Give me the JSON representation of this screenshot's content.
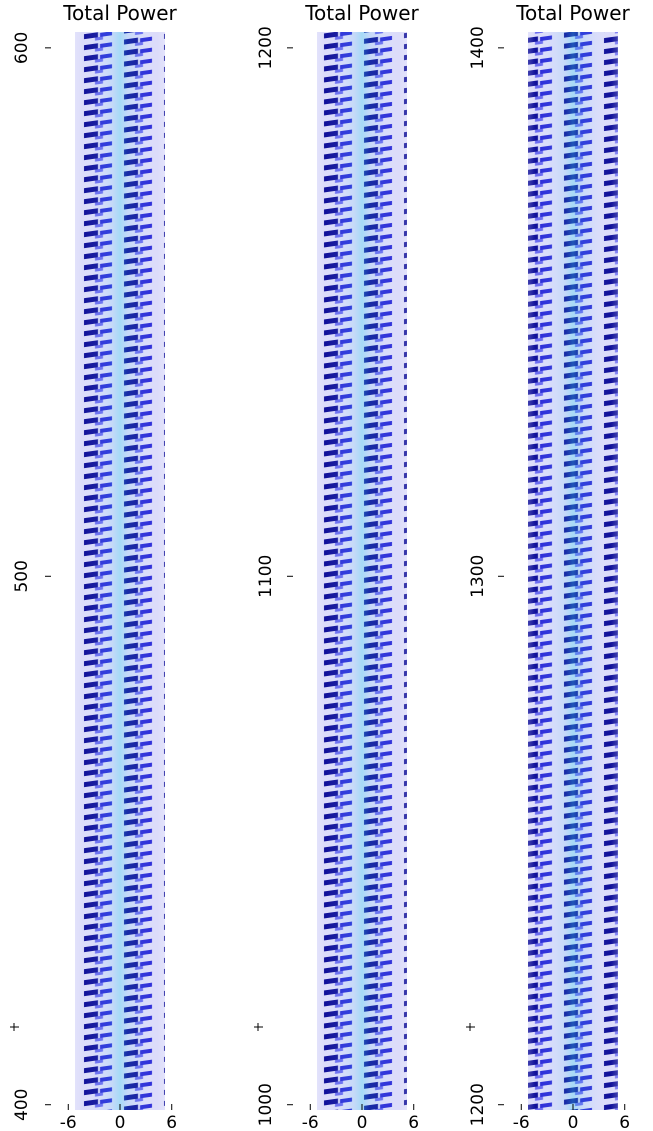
{
  "chart_data": [
    {
      "type": "heatmap",
      "title": "Total Power",
      "xlim": [
        -8.7,
        8.7
      ],
      "xticks": [
        -6,
        0,
        6
      ],
      "ylim": [
        399,
        603
      ],
      "yticks": [
        400,
        500,
        600
      ]
    },
    {
      "type": "heatmap",
      "title": "Total Power",
      "xlim": [
        -8.7,
        8.7
      ],
      "xticks": [
        -6,
        0,
        6
      ],
      "ylim": [
        999,
        1203
      ],
      "yticks": [
        1000,
        1100,
        1200
      ]
    },
    {
      "type": "heatmap",
      "title": "Total Power",
      "xlim": [
        -8.7,
        8.7
      ],
      "xticks": [
        -6,
        0,
        6
      ],
      "ylim": [
        1199,
        1403
      ],
      "yticks": [
        1200,
        1300,
        1400
      ]
    }
  ]
}
